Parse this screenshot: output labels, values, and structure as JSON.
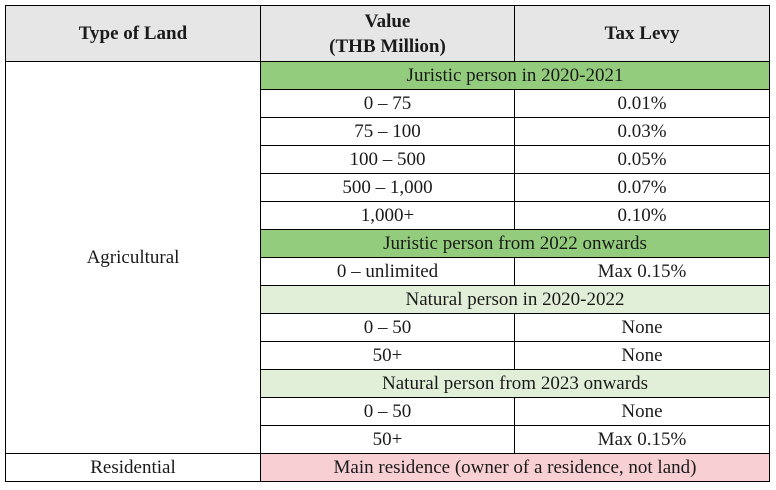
{
  "headers": {
    "type_of_land": "Type of Land",
    "value_line1": "Value",
    "value_line2": "(THB Million)",
    "tax_levy": "Tax Levy"
  },
  "colors": {
    "header_bg": "#e6e6e6",
    "section_dark": "#92cc7c",
    "section_light": "#e2efd8",
    "residential_bg": "#f8d0d3"
  },
  "agricultural": {
    "label": "Agricultural",
    "sections": [
      {
        "title": "Juristic person in 2020-2021",
        "rows": [
          {
            "value": "0 – 75",
            "levy": "0.01%"
          },
          {
            "value": "75 – 100",
            "levy": "0.03%"
          },
          {
            "value": "100 – 500",
            "levy": "0.05%"
          },
          {
            "value": "500 – 1,000",
            "levy": "0.07%"
          },
          {
            "value": "1,000+",
            "levy": "0.10%"
          }
        ]
      },
      {
        "title": "Juristic person from 2022 onwards",
        "rows": [
          {
            "value": "0 – unlimited",
            "levy": "Max 0.15%"
          }
        ]
      },
      {
        "title": "Natural person in 2020-2022",
        "rows": [
          {
            "value": "0 – 50",
            "levy": "None"
          },
          {
            "value": "50+",
            "levy": "None"
          }
        ]
      },
      {
        "title": "Natural person from 2023 onwards",
        "rows": [
          {
            "value": "0 – 50",
            "levy": "None"
          },
          {
            "value": "50+",
            "levy": "Max 0.15%"
          }
        ]
      }
    ]
  },
  "residential": {
    "label": "Residential",
    "note": "Main residence (owner of a residence, not land)"
  }
}
